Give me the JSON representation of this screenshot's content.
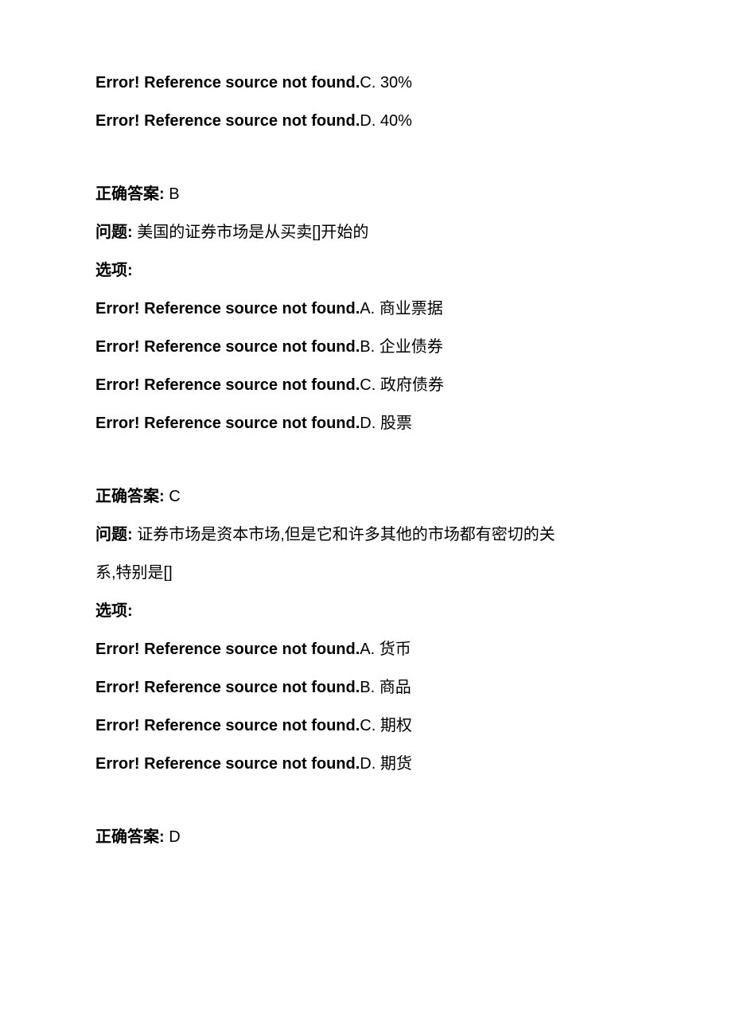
{
  "text": {
    "error_prefix": "Error! Reference source not found.",
    "answer_label": "正确答案: ",
    "question_label": "问题:",
    "options_label": "选项:"
  },
  "block1": {
    "optC": "C. 30%",
    "optD": "D. 40%"
  },
  "block2": {
    "answer": "B",
    "question": " 美国的证券市场是从买卖[]开始的",
    "optA": "A. 商业票据",
    "optB": "B. 企业债券",
    "optC": "C. 政府债券",
    "optD": "D. 股票"
  },
  "block3": {
    "answer": "C",
    "question_part1": " 证券市场是资本市场,但是它和许多其他的市场都有密切的关",
    "question_part2": "系,特别是[]",
    "optA": "A. 货币",
    "optB": "B. 商品",
    "optC": "C. 期权",
    "optD": "D. 期货"
  },
  "block4": {
    "answer": "D"
  }
}
